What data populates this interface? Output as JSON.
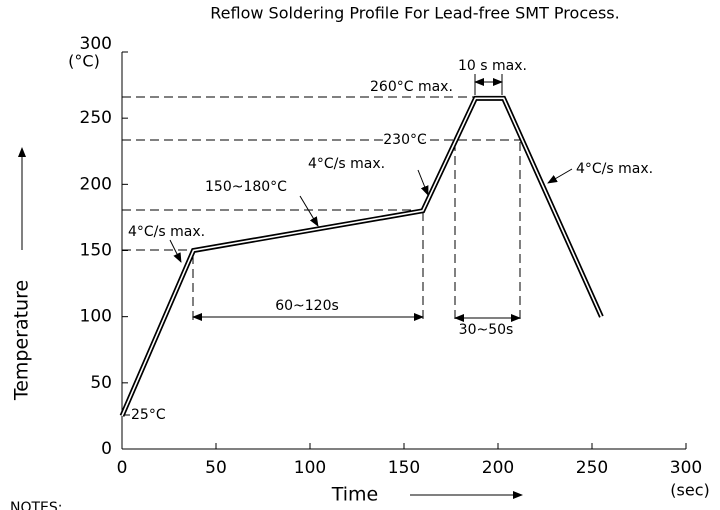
{
  "chart_data": {
    "type": "line",
    "title": "Reflow Soldering Profile For Lead-free SMT Process.",
    "x_label": "Time",
    "y_label": "Temperature",
    "x_unit": "(sec)",
    "y_unit": "(°C)",
    "x": [
      0,
      38,
      160,
      188,
      203,
      255
    ],
    "series": [
      {
        "color": "#000000",
        "values": [
          25,
          150,
          180,
          265,
          265,
          100
        ]
      }
    ],
    "xlim": [
      0,
      300
    ],
    "ylim": [
      0,
      300
    ],
    "xticks": [
      0,
      50,
      100,
      150,
      200,
      250,
      300
    ],
    "yticks": [
      0,
      50,
      100,
      150,
      200,
      250,
      300
    ],
    "grid": false,
    "annotations": [
      "25°C",
      "4°C/s max.",
      "150~180°C",
      "4°C/s max.",
      "230°C",
      "260°C max.",
      "10 s max.",
      "30~50s",
      "60~120s",
      "4°C/s max."
    ],
    "notes": "NOTES:"
  }
}
